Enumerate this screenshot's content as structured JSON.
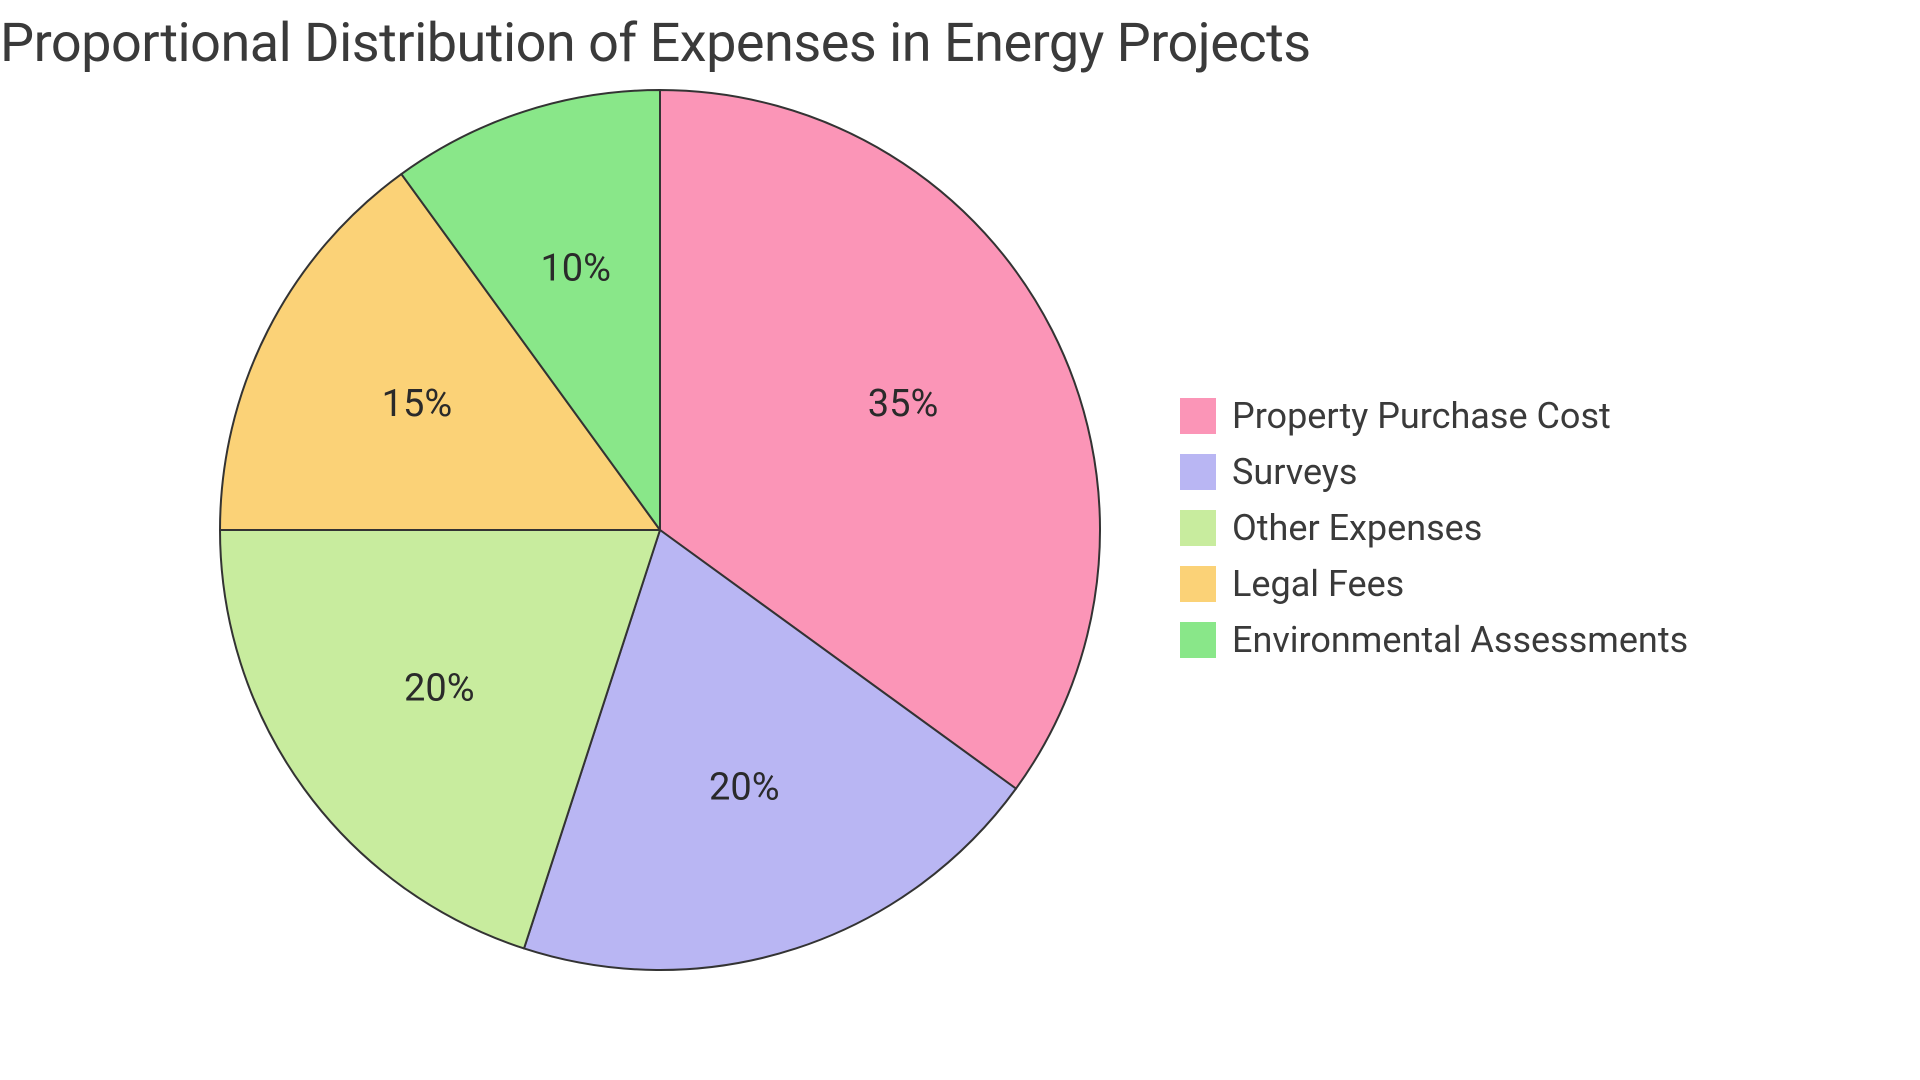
{
  "title": "Proportional Distribution of Expenses in Energy Projects",
  "chart": {
    "type": "pie",
    "background_color": "#ffffff",
    "title_color": "#3a3a3a",
    "title_fontsize": 54,
    "slice_border_color": "#333333",
    "slice_border_width": 2,
    "label_fontsize": 38,
    "label_color": "#2a2a2a",
    "legend_fontsize": 36,
    "legend_swatch_size": 36,
    "pie_radius": 440,
    "label_radius_factor": 0.62,
    "start_angle_deg": -90,
    "slices": [
      {
        "label": "Property Purchase Cost",
        "value": 35,
        "display": "35%",
        "color": "#fb95b7"
      },
      {
        "label": "Surveys",
        "value": 20,
        "display": "20%",
        "color": "#b9b6f3"
      },
      {
        "label": "Other Expenses",
        "value": 20,
        "display": "20%",
        "color": "#c8ec9e"
      },
      {
        "label": "Legal Fees",
        "value": 15,
        "display": "15%",
        "color": "#fbd277"
      },
      {
        "label": "Environmental Assessments",
        "value": 10,
        "display": "10%",
        "color": "#89e789"
      }
    ]
  }
}
